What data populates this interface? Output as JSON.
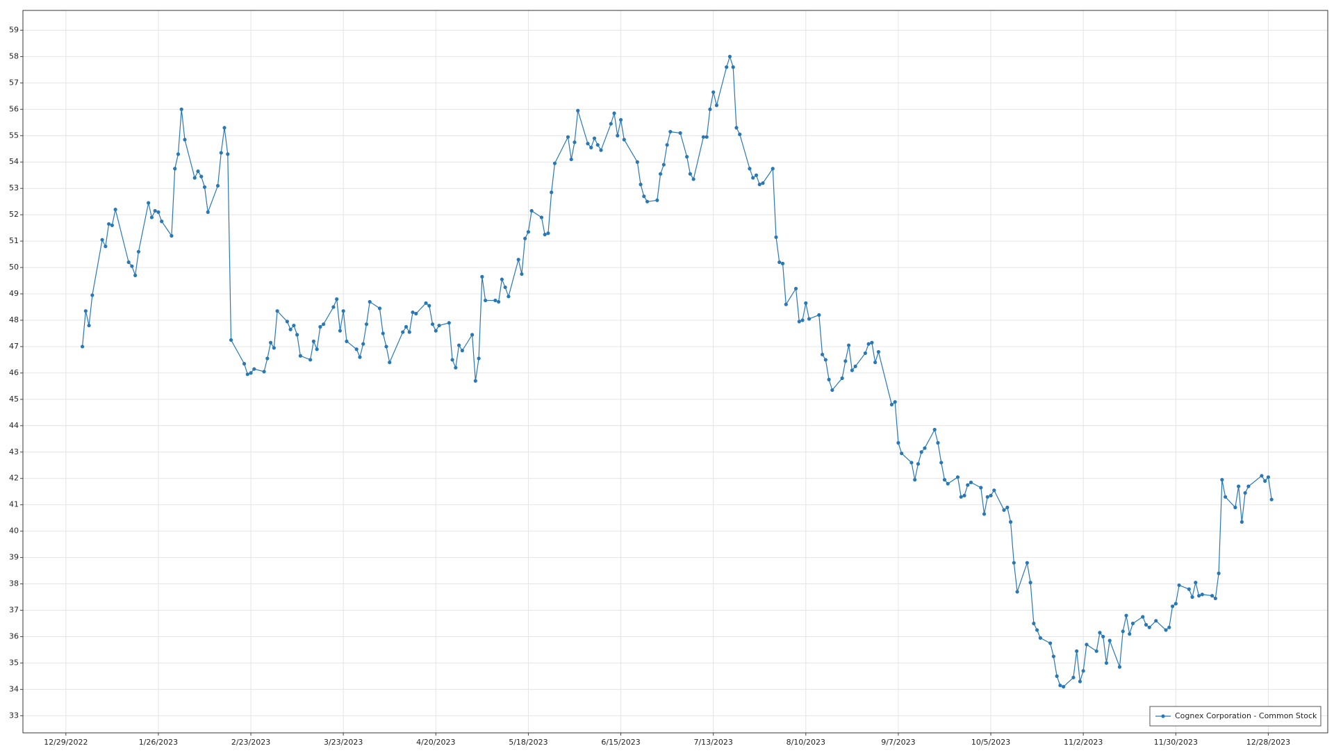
{
  "chart_data": {
    "type": "line",
    "x": [
      "1/3/2023",
      "1/4/2023",
      "1/5/2023",
      "1/6/2023",
      "1/9/2023",
      "1/10/2023",
      "1/11/2023",
      "1/12/2023",
      "1/13/2023",
      "1/17/2023",
      "1/18/2023",
      "1/19/2023",
      "1/20/2023",
      "1/23/2023",
      "1/24/2023",
      "1/25/2023",
      "1/26/2023",
      "1/27/2023",
      "1/30/2023",
      "1/31/2023",
      "2/1/2023",
      "2/2/2023",
      "2/3/2023",
      "2/6/2023",
      "2/7/2023",
      "2/8/2023",
      "2/9/2023",
      "2/10/2023",
      "2/13/2023",
      "2/14/2023",
      "2/15/2023",
      "2/16/2023",
      "2/17/2023",
      "2/21/2023",
      "2/22/2023",
      "2/23/2023",
      "2/24/2023",
      "2/27/2023",
      "2/28/2023",
      "3/1/2023",
      "3/2/2023",
      "3/3/2023",
      "3/6/2023",
      "3/7/2023",
      "3/8/2023",
      "3/9/2023",
      "3/10/2023",
      "3/13/2023",
      "3/14/2023",
      "3/15/2023",
      "3/16/2023",
      "3/17/2023",
      "3/20/2023",
      "3/21/2023",
      "3/22/2023",
      "3/23/2023",
      "3/24/2023",
      "3/27/2023",
      "3/28/2023",
      "3/29/2023",
      "3/30/2023",
      "3/31/2023",
      "4/3/2023",
      "4/4/2023",
      "4/5/2023",
      "4/6/2023",
      "4/10/2023",
      "4/11/2023",
      "4/12/2023",
      "4/13/2023",
      "4/14/2023",
      "4/17/2023",
      "4/18/2023",
      "4/19/2023",
      "4/20/2023",
      "4/21/2023",
      "4/24/2023",
      "4/25/2023",
      "4/26/2023",
      "4/27/2023",
      "4/28/2023",
      "5/1/2023",
      "5/2/2023",
      "5/3/2023",
      "5/4/2023",
      "5/5/2023",
      "5/8/2023",
      "5/9/2023",
      "5/10/2023",
      "5/11/2023",
      "5/12/2023",
      "5/15/2023",
      "5/16/2023",
      "5/17/2023",
      "5/18/2023",
      "5/19/2023",
      "5/22/2023",
      "5/23/2023",
      "5/24/2023",
      "5/25/2023",
      "5/26/2023",
      "5/30/2023",
      "5/31/2023",
      "6/1/2023",
      "6/2/2023",
      "6/5/2023",
      "6/6/2023",
      "6/7/2023",
      "6/8/2023",
      "6/9/2023",
      "6/12/2023",
      "6/13/2023",
      "6/14/2023",
      "6/15/2023",
      "6/16/2023",
      "6/20/2023",
      "6/21/2023",
      "6/22/2023",
      "6/23/2023",
      "6/26/2023",
      "6/27/2023",
      "6/28/2023",
      "6/29/2023",
      "6/30/2023",
      "7/3/2023",
      "7/5/2023",
      "7/6/2023",
      "7/7/2023",
      "7/10/2023",
      "7/11/2023",
      "7/12/2023",
      "7/13/2023",
      "7/14/2023",
      "7/17/2023",
      "7/18/2023",
      "7/19/2023",
      "7/20/2023",
      "7/21/2023",
      "7/24/2023",
      "7/25/2023",
      "7/26/2023",
      "7/27/2023",
      "7/28/2023",
      "7/31/2023",
      "8/1/2023",
      "8/2/2023",
      "8/3/2023",
      "8/4/2023",
      "8/7/2023",
      "8/8/2023",
      "8/9/2023",
      "8/10/2023",
      "8/11/2023",
      "8/14/2023",
      "8/15/2023",
      "8/16/2023",
      "8/17/2023",
      "8/18/2023",
      "8/21/2023",
      "8/22/2023",
      "8/23/2023",
      "8/24/2023",
      "8/25/2023",
      "8/28/2023",
      "8/29/2023",
      "8/30/2023",
      "8/31/2023",
      "9/1/2023",
      "9/5/2023",
      "9/6/2023",
      "9/7/2023",
      "9/8/2023",
      "9/11/2023",
      "9/12/2023",
      "9/13/2023",
      "9/14/2023",
      "9/15/2023",
      "9/18/2023",
      "9/19/2023",
      "9/20/2023",
      "9/21/2023",
      "9/22/2023",
      "9/25/2023",
      "9/26/2023",
      "9/27/2023",
      "9/28/2023",
      "9/29/2023",
      "10/2/2023",
      "10/3/2023",
      "10/4/2023",
      "10/5/2023",
      "10/6/2023",
      "10/9/2023",
      "10/10/2023",
      "10/11/2023",
      "10/12/2023",
      "10/13/2023",
      "10/16/2023",
      "10/17/2023",
      "10/18/2023",
      "10/19/2023",
      "10/20/2023",
      "10/23/2023",
      "10/24/2023",
      "10/25/2023",
      "10/26/2023",
      "10/27/2023",
      "10/30/2023",
      "10/31/2023",
      "11/1/2023",
      "11/2/2023",
      "11/3/2023",
      "11/6/2023",
      "11/7/2023",
      "11/8/2023",
      "11/9/2023",
      "11/10/2023",
      "11/13/2023",
      "11/14/2023",
      "11/15/2023",
      "11/16/2023",
      "11/17/2023",
      "11/20/2023",
      "11/21/2023",
      "11/22/2023",
      "11/24/2023",
      "11/27/2023",
      "11/28/2023",
      "11/29/2023",
      "11/30/2023",
      "12/1/2023",
      "12/4/2023",
      "12/5/2023",
      "12/6/2023",
      "12/7/2023",
      "12/8/2023",
      "12/11/2023",
      "12/12/2023",
      "12/13/2023",
      "12/14/2023",
      "12/15/2023",
      "12/18/2023",
      "12/19/2023",
      "12/20/2023",
      "12/21/2023",
      "12/22/2023",
      "12/26/2023",
      "12/27/2023",
      "12/28/2023",
      "12/29/2023"
    ],
    "series": [
      {
        "name": "Cognex Corporation - Common Stock",
        "color": "#2878b5",
        "values": [
          47.0,
          48.35,
          47.8,
          48.95,
          51.05,
          50.8,
          51.65,
          51.6,
          52.2,
          50.2,
          50.05,
          49.7,
          50.6,
          52.45,
          51.9,
          52.15,
          52.1,
          51.75,
          51.2,
          53.75,
          54.3,
          56.0,
          54.85,
          53.4,
          53.65,
          53.45,
          53.05,
          52.1,
          53.1,
          54.35,
          55.3,
          54.3,
          47.25,
          46.35,
          45.95,
          46.0,
          46.15,
          46.05,
          46.55,
          47.15,
          46.95,
          48.35,
          47.95,
          47.65,
          47.8,
          47.45,
          46.65,
          46.5,
          47.2,
          46.9,
          47.75,
          47.85,
          48.5,
          48.8,
          47.6,
          48.35,
          47.2,
          46.9,
          46.6,
          47.1,
          47.85,
          48.7,
          48.45,
          47.5,
          47.0,
          46.4,
          47.55,
          47.75,
          47.55,
          48.3,
          48.25,
          48.65,
          48.55,
          47.85,
          47.6,
          47.8,
          47.9,
          46.5,
          46.2,
          47.05,
          46.85,
          47.45,
          45.7,
          46.55,
          49.65,
          48.75,
          48.75,
          48.7,
          49.55,
          49.25,
          48.9,
          50.3,
          49.75,
          51.1,
          51.35,
          52.15,
          51.9,
          51.25,
          51.3,
          52.85,
          53.95,
          54.95,
          54.1,
          54.75,
          55.95,
          54.7,
          54.55,
          54.9,
          54.65,
          54.45,
          55.45,
          55.85,
          55.0,
          55.6,
          54.85,
          54.0,
          53.15,
          52.7,
          52.5,
          52.55,
          53.55,
          53.9,
          54.65,
          55.15,
          55.1,
          54.2,
          53.55,
          53.35,
          54.95,
          54.95,
          56.0,
          56.65,
          56.15,
          57.6,
          58.0,
          57.6,
          55.3,
          55.05,
          53.75,
          53.4,
          53.5,
          53.15,
          53.2,
          53.75,
          51.15,
          50.2,
          50.15,
          48.6,
          49.2,
          47.95,
          48.0,
          48.65,
          48.05,
          48.2,
          46.7,
          46.5,
          45.75,
          45.35,
          45.8,
          46.45,
          47.05,
          46.1,
          46.25,
          46.75,
          47.1,
          47.15,
          46.4,
          46.8,
          44.8,
          44.9,
          43.35,
          42.95,
          42.6,
          41.95,
          42.55,
          43.0,
          43.15,
          43.85,
          43.35,
          42.6,
          41.95,
          41.8,
          42.05,
          41.3,
          41.35,
          41.75,
          41.85,
          41.65,
          40.65,
          41.3,
          41.35,
          41.55,
          40.8,
          40.9,
          40.35,
          38.8,
          37.7,
          38.8,
          38.05,
          36.5,
          36.25,
          35.95,
          35.75,
          35.25,
          34.5,
          34.15,
          34.1,
          34.45,
          35.45,
          34.3,
          34.7,
          35.7,
          35.45,
          36.15,
          36.0,
          35.0,
          35.85,
          34.85,
          36.2,
          36.8,
          36.1,
          36.5,
          36.75,
          36.45,
          36.35,
          36.6,
          36.25,
          36.35,
          37.15,
          37.25,
          37.95,
          37.8,
          37.5,
          38.05,
          37.55,
          37.6,
          37.55,
          37.45,
          38.4,
          41.95,
          41.3,
          40.9,
          41.7,
          40.35,
          41.45,
          41.7,
          42.1,
          41.9,
          42.05,
          41.2
        ]
      }
    ],
    "xlim": [
      "12/16/2022",
      "1/15/2024"
    ],
    "xticks": [
      "12/29/2022",
      "1/26/2023",
      "2/23/2023",
      "3/23/2023",
      "4/20/2023",
      "5/18/2023",
      "6/15/2023",
      "7/13/2023",
      "8/10/2023",
      "9/7/2023",
      "10/5/2023",
      "11/2/2023",
      "11/30/2023",
      "12/28/2023"
    ],
    "ylim": [
      32.35,
      59.75
    ],
    "yticks": [
      33,
      34,
      35,
      36,
      37,
      38,
      39,
      40,
      41,
      42,
      43,
      44,
      45,
      46,
      47,
      48,
      49,
      50,
      51,
      52,
      53,
      54,
      55,
      56,
      57,
      58,
      59
    ],
    "grid": true,
    "legend": "lower right"
  }
}
